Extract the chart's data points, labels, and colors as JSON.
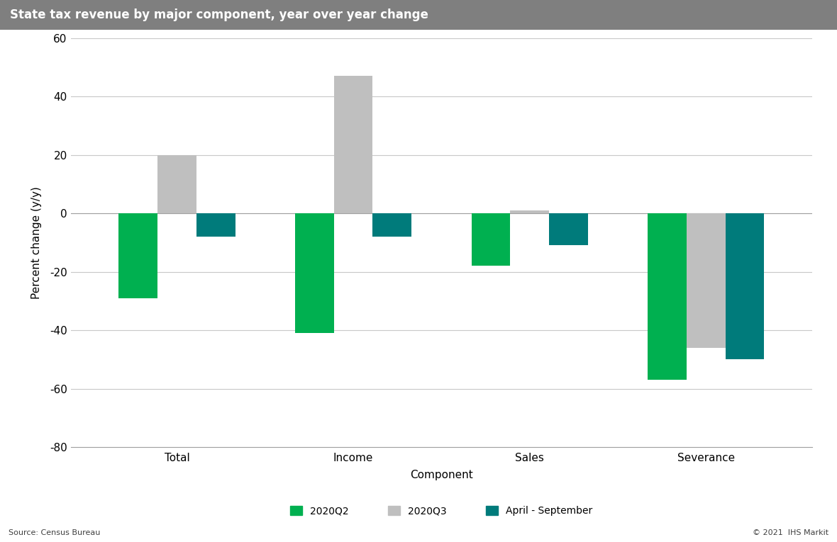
{
  "title": "State tax revenue by major component, year over year change",
  "title_bg_color": "#7f7f7f",
  "title_text_color": "#ffffff",
  "categories": [
    "Total",
    "Income",
    "Sales",
    "Severance"
  ],
  "series": {
    "2020Q2": [
      -29,
      -41,
      -18,
      -57
    ],
    "2020Q3": [
      20,
      47,
      1,
      -46
    ],
    "April - September": [
      -8,
      -8,
      -11,
      -50
    ]
  },
  "colors": {
    "2020Q2": "#00b050",
    "2020Q3": "#bfbfbf",
    "April - September": "#007b7b"
  },
  "xlabel": "Component",
  "ylabel": "Percent change (y/y)",
  "ylim": [
    -80,
    60
  ],
  "yticks": [
    -80,
    -60,
    -40,
    -20,
    0,
    20,
    40,
    60
  ],
  "source_text": "Source: Census Bureau",
  "copyright_text": "© 2021  IHS Markit",
  "bar_width": 0.22,
  "background_color": "#ffffff",
  "plot_bg_color": "#ffffff",
  "grid_color": "#c8c8c8",
  "legend_labels": [
    "2020Q2",
    "2020Q3",
    "April - September"
  ]
}
